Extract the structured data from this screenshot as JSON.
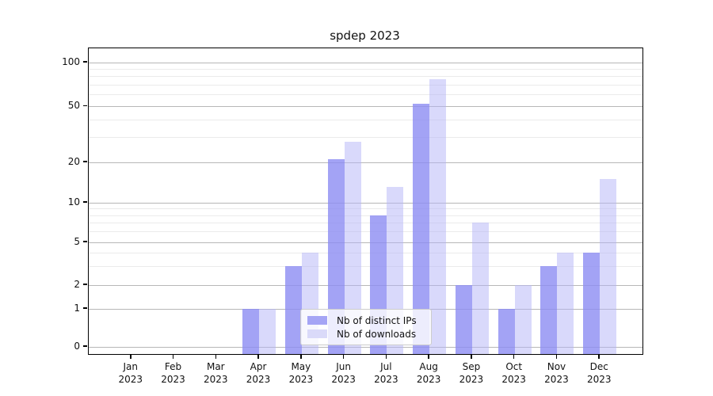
{
  "title": "spdep 2023",
  "colors": {
    "ips_solid": "#a5a5f5",
    "downloads_solid": "#dadaf9",
    "ips_bar": "rgba(140,140,243,0.8)",
    "downloads_bar": "rgba(180,180,248,0.5)",
    "major_grid": "#b7b7b7",
    "minor_grid": "#ebebeb",
    "axis": "#000000"
  },
  "legend": {
    "items": [
      {
        "label": "Nb of distinct IPs",
        "series": "ips"
      },
      {
        "label": "Nb of downloads",
        "series": "downloads"
      }
    ]
  },
  "chart_data": {
    "type": "bar",
    "title": "spdep 2023",
    "categories": [
      "Jan 2023",
      "Feb 2023",
      "Mar 2023",
      "Apr 2023",
      "May 2023",
      "Jun 2023",
      "Jul 2023",
      "Aug 2023",
      "Sep 2023",
      "Oct 2023",
      "Nov 2023",
      "Dec 2023"
    ],
    "series": [
      {
        "name": "Nb of distinct IPs",
        "values": [
          0,
          0,
          0,
          1,
          3,
          21,
          8,
          52,
          2,
          1,
          3,
          4
        ]
      },
      {
        "name": "Nb of downloads",
        "values": [
          0,
          0,
          0,
          1,
          4,
          28,
          13,
          76,
          7,
          2,
          4,
          15
        ]
      }
    ],
    "xlabel": "",
    "ylabel": "",
    "yscale": "log1p-like",
    "ylim": [
      0,
      120
    ],
    "yticks": [
      0,
      1,
      2,
      5,
      10,
      20,
      50,
      100
    ],
    "minor_yticks": [
      3,
      4,
      6,
      7,
      8,
      9,
      30,
      40,
      60,
      70,
      80,
      90
    ],
    "grid": "horizontal",
    "legend_position": "lower center inside"
  }
}
